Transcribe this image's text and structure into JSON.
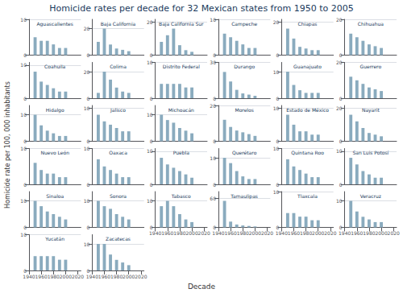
{
  "title": "Homicide rates per decade for 32 Mexican states from 1950 to 2005",
  "xlabel": "Decade",
  "ylabel": "Homicide rate per 100, 000 inhabitants",
  "chart_data": [
    {
      "type": "bar",
      "title": "Aguascalientes",
      "x": [
        1950,
        1960,
        1970,
        1980,
        1990,
        2000
      ],
      "values": [
        5,
        4,
        4,
        3,
        2,
        2
      ],
      "color": "#8aabbe",
      "xlim": [
        1940,
        2025
      ],
      "ylim": [
        0,
        10
      ],
      "yticks": [
        0,
        10
      ],
      "grid": true,
      "tick_labels": "y"
    },
    {
      "type": "bar",
      "title": "Baja California",
      "x": [
        1950,
        1960,
        1970,
        1980,
        1990,
        2000
      ],
      "values": [
        10,
        20,
        8,
        5,
        4,
        3
      ],
      "color": "#8aabbe",
      "xlim": [
        1940,
        2025
      ],
      "ylim": [
        0,
        27
      ],
      "yticks": [
        0,
        20
      ],
      "grid": true,
      "tick_labels": "y"
    },
    {
      "type": "bar",
      "title": "Baja California Sur",
      "x": [
        1950,
        1960,
        1970,
        1980,
        1990,
        2000
      ],
      "values": [
        8,
        12,
        16,
        6,
        3,
        2
      ],
      "color": "#8aabbe",
      "xlim": [
        1940,
        2025
      ],
      "ylim": [
        0,
        21.6
      ],
      "yticks": [
        0,
        20
      ],
      "grid": true,
      "tick_labels": "y"
    },
    {
      "type": "bar",
      "title": "Campeche",
      "x": [
        1950,
        1960,
        1970,
        1980,
        1990,
        2000
      ],
      "values": [
        6,
        5,
        4,
        3,
        2,
        2
      ],
      "color": "#8aabbe",
      "xlim": [
        1940,
        2025
      ],
      "ylim": [
        0,
        10
      ],
      "yticks": [
        0,
        10
      ],
      "grid": true,
      "tick_labels": "y"
    },
    {
      "type": "bar",
      "title": "Chiapas",
      "x": [
        1950,
        1960,
        1970,
        1980,
        1990,
        2000
      ],
      "values": [
        16,
        10,
        5,
        4,
        3,
        3
      ],
      "color": "#8aabbe",
      "xlim": [
        1940,
        2025
      ],
      "ylim": [
        0,
        21.6
      ],
      "yticks": [
        0,
        20
      ],
      "grid": true,
      "tick_labels": "y"
    },
    {
      "type": "bar",
      "title": "Chihuahua",
      "x": [
        1950,
        1960,
        1970,
        1980,
        1990,
        2000
      ],
      "values": [
        12,
        10,
        8,
        6,
        5,
        4
      ],
      "color": "#8aabbe",
      "xlim": [
        1940,
        2025
      ],
      "ylim": [
        0,
        20
      ],
      "yticks": [
        0,
        20
      ],
      "grid": true,
      "tick_labels": "y"
    },
    {
      "type": "bar",
      "title": "Coahuila",
      "x": [
        1950,
        1960,
        1970,
        1980,
        1990,
        2000
      ],
      "values": [
        8,
        5,
        4,
        3,
        2,
        2
      ],
      "color": "#8aabbe",
      "xlim": [
        1940,
        2025
      ],
      "ylim": [
        0,
        10.8
      ],
      "yticks": [
        0,
        10
      ],
      "grid": true,
      "tick_labels": "y"
    },
    {
      "type": "bar",
      "title": "Colima",
      "x": [
        1950,
        1960,
        1970,
        1980,
        1990,
        2000
      ],
      "values": [
        4,
        20,
        14,
        8,
        5,
        4
      ],
      "color": "#8aabbe",
      "xlim": [
        1940,
        2025
      ],
      "ylim": [
        0,
        27
      ],
      "yticks": [
        0,
        20
      ],
      "grid": true,
      "tick_labels": "y"
    },
    {
      "type": "bar",
      "title": "Distrito Federal",
      "x": [
        1950,
        1960,
        1970,
        1980,
        1990,
        2000
      ],
      "values": [
        4,
        4,
        4,
        4,
        3,
        3
      ],
      "color": "#8aabbe",
      "xlim": [
        1940,
        2025
      ],
      "ylim": [
        0,
        10
      ],
      "yticks": [
        0,
        10
      ],
      "grid": true,
      "tick_labels": "y"
    },
    {
      "type": "bar",
      "title": "Durango",
      "x": [
        1950,
        1960,
        1970,
        1980,
        1990,
        2000
      ],
      "values": [
        22,
        14,
        7,
        4,
        3,
        2
      ],
      "color": "#8aabbe",
      "xlim": [
        1940,
        2025
      ],
      "ylim": [
        0,
        30
      ],
      "yticks": [
        0,
        30
      ],
      "grid": true,
      "tick_labels": "y"
    },
    {
      "type": "bar",
      "title": "Guanajuato",
      "x": [
        1950,
        1960,
        1970,
        1980,
        1990,
        2000
      ],
      "values": [
        10,
        5,
        3,
        2,
        2,
        2
      ],
      "color": "#8aabbe",
      "xlim": [
        1940,
        2025
      ],
      "ylim": [
        0,
        13.5
      ],
      "yticks": [
        0,
        10
      ],
      "grid": true,
      "tick_labels": "y"
    },
    {
      "type": "bar",
      "title": "Guerrero",
      "x": [
        1950,
        1960,
        1970,
        1980,
        1990,
        2000
      ],
      "values": [
        12,
        10,
        8,
        6,
        5,
        4
      ],
      "color": "#8aabbe",
      "xlim": [
        1940,
        2025
      ],
      "ylim": [
        0,
        20
      ],
      "yticks": [
        0,
        20
      ],
      "grid": true,
      "tick_labels": "y"
    },
    {
      "type": "bar",
      "title": "Hidalgo",
      "x": [
        1950,
        1960,
        1970,
        1980,
        1990,
        2000
      ],
      "values": [
        10,
        6,
        4,
        3,
        2,
        2
      ],
      "color": "#8aabbe",
      "xlim": [
        1940,
        2025
      ],
      "ylim": [
        0,
        13.5
      ],
      "yticks": [
        0,
        10
      ],
      "grid": true,
      "tick_labels": "y"
    },
    {
      "type": "bar",
      "title": "Jalisco",
      "x": [
        1950,
        1960,
        1970,
        1980,
        1990,
        2000
      ],
      "values": [
        8,
        6,
        5,
        4,
        3,
        3
      ],
      "color": "#8aabbe",
      "xlim": [
        1940,
        2025
      ],
      "ylim": [
        0,
        10.8
      ],
      "yticks": [
        0,
        10
      ],
      "grid": true,
      "tick_labels": "y"
    },
    {
      "type": "bar",
      "title": "Michoacán",
      "x": [
        1950,
        1960,
        1970,
        1980,
        1990,
        2000
      ],
      "values": [
        10,
        8,
        7,
        5,
        4,
        3
      ],
      "color": "#8aabbe",
      "xlim": [
        1940,
        2025
      ],
      "ylim": [
        0,
        13.5
      ],
      "yticks": [
        0,
        10
      ],
      "grid": true,
      "tick_labels": "y"
    },
    {
      "type": "bar",
      "title": "Morelos",
      "x": [
        1950,
        1960,
        1970,
        1980,
        1990,
        2000
      ],
      "values": [
        12,
        8,
        6,
        5,
        4,
        3
      ],
      "color": "#8aabbe",
      "xlim": [
        1940,
        2025
      ],
      "ylim": [
        0,
        20
      ],
      "yticks": [
        0,
        20
      ],
      "grid": true,
      "tick_labels": "y"
    },
    {
      "type": "bar",
      "title": "Estado de México",
      "x": [
        1950,
        1960,
        1970,
        1980,
        1990,
        2000
      ],
      "values": [
        8,
        5,
        3,
        3,
        2,
        2
      ],
      "color": "#8aabbe",
      "xlim": [
        1940,
        2025
      ],
      "ylim": [
        0,
        10.8
      ],
      "yticks": [
        0,
        10
      ],
      "grid": true,
      "tick_labels": "y"
    },
    {
      "type": "bar",
      "title": "Nayarit",
      "x": [
        1950,
        1960,
        1970,
        1980,
        1990,
        2000
      ],
      "values": [
        16,
        12,
        8,
        5,
        4,
        3
      ],
      "color": "#8aabbe",
      "xlim": [
        1940,
        2025
      ],
      "ylim": [
        0,
        21.6
      ],
      "yticks": [
        0,
        20
      ],
      "grid": true,
      "tick_labels": "y"
    },
    {
      "type": "bar",
      "title": "Nuevo León",
      "x": [
        1950,
        1960,
        1970,
        1980,
        1990,
        2000
      ],
      "values": [
        6,
        4,
        3,
        3,
        2,
        2
      ],
      "color": "#8aabbe",
      "xlim": [
        1940,
        2025
      ],
      "ylim": [
        0,
        10
      ],
      "yticks": [
        0,
        10
      ],
      "grid": true,
      "tick_labels": "y"
    },
    {
      "type": "bar",
      "title": "Oaxaca",
      "x": [
        1950,
        1960,
        1970,
        1980,
        1990,
        2000
      ],
      "values": [
        7,
        5,
        4,
        3,
        2,
        2
      ],
      "color": "#8aabbe",
      "xlim": [
        1940,
        2025
      ],
      "ylim": [
        0,
        10
      ],
      "yticks": [
        0,
        10
      ],
      "grid": true,
      "tick_labels": "y"
    },
    {
      "type": "bar",
      "title": "Puebla",
      "x": [
        1950,
        1960,
        1970,
        1980,
        1990,
        2000
      ],
      "values": [
        8,
        6,
        5,
        4,
        3,
        2
      ],
      "color": "#8aabbe",
      "xlim": [
        1940,
        2025
      ],
      "ylim": [
        0,
        10.8
      ],
      "yticks": [
        0,
        10
      ],
      "grid": true,
      "tick_labels": "y"
    },
    {
      "type": "bar",
      "title": "Querétaro",
      "x": [
        1950,
        1960,
        1970,
        1980,
        1990,
        2000
      ],
      "values": [
        10,
        8,
        5,
        3,
        2,
        2
      ],
      "color": "#8aabbe",
      "xlim": [
        1940,
        2025
      ],
      "ylim": [
        0,
        13.5
      ],
      "yticks": [
        0,
        10
      ],
      "grid": true,
      "tick_labels": "y"
    },
    {
      "type": "bar",
      "title": "Quintana Roo",
      "x": [
        1950,
        1960,
        1970,
        1980,
        1990,
        2000
      ],
      "values": [
        7,
        5,
        4,
        3,
        2,
        2
      ],
      "color": "#8aabbe",
      "xlim": [
        1940,
        2025
      ],
      "ylim": [
        0,
        10
      ],
      "yticks": [
        0,
        10
      ],
      "grid": true,
      "tick_labels": "y"
    },
    {
      "type": "bar",
      "title": "San Luis Potosí",
      "x": [
        1950,
        1960,
        1970,
        1980,
        1990,
        2000
      ],
      "values": [
        8,
        6,
        4,
        3,
        2,
        2
      ],
      "color": "#8aabbe",
      "xlim": [
        1940,
        2025
      ],
      "ylim": [
        0,
        10.8
      ],
      "yticks": [
        0,
        10
      ],
      "grid": true,
      "tick_labels": "y"
    },
    {
      "type": "bar",
      "title": "Sinaloa",
      "x": [
        1950,
        1960,
        1970,
        1980,
        1990,
        2000
      ],
      "values": [
        10,
        8,
        6,
        5,
        4,
        3
      ],
      "color": "#8aabbe",
      "xlim": [
        1940,
        2025
      ],
      "ylim": [
        0,
        13.5
      ],
      "yticks": [
        0,
        10
      ],
      "grid": true,
      "tick_labels": "y"
    },
    {
      "type": "bar",
      "title": "Sonora",
      "x": [
        1950,
        1960,
        1970,
        1980,
        1990,
        2000
      ],
      "values": [
        10,
        8,
        7,
        5,
        4,
        3
      ],
      "color": "#8aabbe",
      "xlim": [
        1940,
        2025
      ],
      "ylim": [
        0,
        13.5
      ],
      "yticks": [
        0,
        10
      ],
      "grid": true,
      "tick_labels": "y"
    },
    {
      "type": "bar",
      "title": "Tabasco",
      "x": [
        1950,
        1960,
        1970,
        1980,
        1990,
        2000
      ],
      "values": [
        8,
        10,
        8,
        5,
        3,
        2
      ],
      "color": "#8aabbe",
      "xlim": [
        1940,
        2025
      ],
      "xticks": [
        1940,
        1960,
        1980,
        2000,
        2020
      ],
      "ylim": [
        0,
        13.5
      ],
      "yticks": [
        0,
        10
      ],
      "grid": true
    },
    {
      "type": "bar",
      "title": "Tamaulipas",
      "x": [
        1950,
        1960,
        1970,
        1980,
        1990,
        2000
      ],
      "values": [
        55,
        12,
        6,
        4,
        3,
        2
      ],
      "color": "#8aabbe",
      "xlim": [
        1940,
        2025
      ],
      "xticks": [
        1940,
        1960,
        1980,
        2000,
        2020
      ],
      "ylim": [
        0,
        74.25
      ],
      "yticks": [
        0,
        60
      ],
      "grid": true
    },
    {
      "type": "bar",
      "title": "Tlaxcala",
      "x": [
        1950,
        1960,
        1970,
        1980,
        1990,
        2000
      ],
      "values": [
        4,
        4,
        3,
        3,
        2,
        2
      ],
      "color": "#8aabbe",
      "xlim": [
        1940,
        2025
      ],
      "xticks": [
        1940,
        1960,
        1980,
        2000,
        2020
      ],
      "ylim": [
        0,
        10
      ],
      "yticks": [
        0,
        10
      ],
      "grid": true
    },
    {
      "type": "bar",
      "title": "Veracruz",
      "x": [
        1950,
        1960,
        1970,
        1980,
        1990,
        2000
      ],
      "values": [
        10,
        6,
        4,
        3,
        2,
        2
      ],
      "color": "#8aabbe",
      "xlim": [
        1940,
        2025
      ],
      "xticks": [
        1940,
        1960,
        1980,
        2000,
        2020
      ],
      "ylim": [
        0,
        13.5
      ],
      "yticks": [
        0,
        10
      ],
      "grid": true
    },
    {
      "type": "bar",
      "title": "Yucatán",
      "x": [
        1950,
        1960,
        1970,
        1980,
        1990,
        2000
      ],
      "values": [
        4,
        4,
        4,
        4,
        3,
        3
      ],
      "color": "#8aabbe",
      "xlim": [
        1940,
        2025
      ],
      "xticks": [
        1940,
        1960,
        1980,
        2000,
        2020
      ],
      "ylim": [
        0,
        10
      ],
      "yticks": [
        0,
        10
      ],
      "grid": true
    },
    {
      "type": "bar",
      "title": "Zacatecas",
      "x": [
        1950,
        1960,
        1970,
        1980,
        1990,
        2000
      ],
      "values": [
        10,
        10,
        6,
        4,
        3,
        2
      ],
      "color": "#8aabbe",
      "xlim": [
        1940,
        2025
      ],
      "xticks": [
        1940,
        1960,
        1980,
        2000,
        2020
      ],
      "ylim": [
        0,
        13.5
      ],
      "yticks": [
        0,
        10
      ],
      "grid": true
    }
  ]
}
